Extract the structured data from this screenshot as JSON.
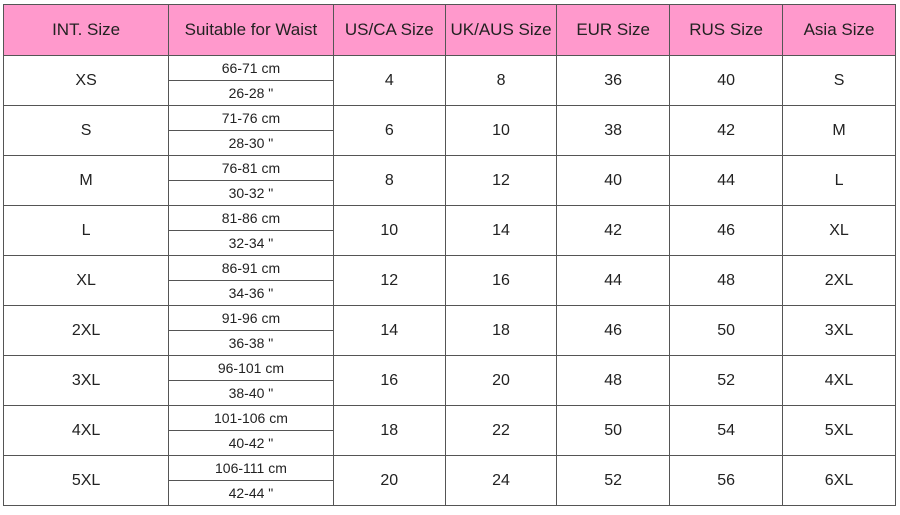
{
  "colors": {
    "header_bg": "#ff99cc"
  },
  "headers": [
    "INT. Size",
    "Suitable for Waist",
    "US/CA Size",
    "UK/AUS Size",
    "EUR Size",
    "RUS Size",
    "Asia Size"
  ],
  "rows": [
    {
      "int": "XS",
      "cm": "66-71 cm",
      "in": "26-28 \"",
      "us": "4",
      "uk": "8",
      "eur": "36",
      "rus": "40",
      "asia": "S"
    },
    {
      "int": "S",
      "cm": "71-76 cm",
      "in": "28-30 \"",
      "us": "6",
      "uk": "10",
      "eur": "38",
      "rus": "42",
      "asia": "M"
    },
    {
      "int": "M",
      "cm": "76-81 cm",
      "in": "30-32 \"",
      "us": "8",
      "uk": "12",
      "eur": "40",
      "rus": "44",
      "asia": "L"
    },
    {
      "int": "L",
      "cm": "81-86 cm",
      "in": "32-34 \"",
      "us": "10",
      "uk": "14",
      "eur": "42",
      "rus": "46",
      "asia": "XL"
    },
    {
      "int": "XL",
      "cm": "86-91 cm",
      "in": "34-36 \"",
      "us": "12",
      "uk": "16",
      "eur": "44",
      "rus": "48",
      "asia": "2XL"
    },
    {
      "int": "2XL",
      "cm": "91-96 cm",
      "in": "36-38 \"",
      "us": "14",
      "uk": "18",
      "eur": "46",
      "rus": "50",
      "asia": "3XL"
    },
    {
      "int": "3XL",
      "cm": "96-101 cm",
      "in": "38-40 \"",
      "us": "16",
      "uk": "20",
      "eur": "48",
      "rus": "52",
      "asia": "4XL"
    },
    {
      "int": "4XL",
      "cm": "101-106 cm",
      "in": "40-42 \"",
      "us": "18",
      "uk": "22",
      "eur": "50",
      "rus": "54",
      "asia": "5XL"
    },
    {
      "int": "5XL",
      "cm": "106-111 cm",
      "in": "42-44 \"",
      "us": "20",
      "uk": "24",
      "eur": "52",
      "rus": "56",
      "asia": "6XL"
    }
  ]
}
